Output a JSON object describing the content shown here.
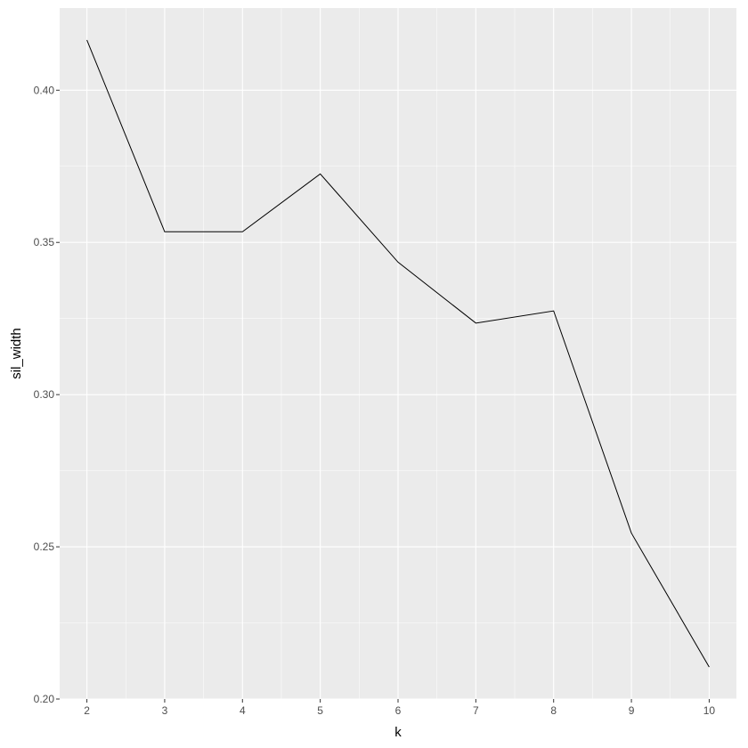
{
  "chart_data": {
    "type": "line",
    "title": "",
    "xlabel": "k",
    "ylabel": "sil_width",
    "x": [
      2,
      3,
      4,
      5,
      6,
      7,
      8,
      9,
      10
    ],
    "y": [
      0.4165,
      0.3535,
      0.3535,
      0.3725,
      0.3435,
      0.3235,
      0.3275,
      0.2545,
      0.2105
    ],
    "xlim": [
      1.65,
      10.35
    ],
    "ylim": [
      0.2,
      0.427
    ],
    "x_ticks": [
      2,
      3,
      4,
      5,
      6,
      7,
      8,
      9,
      10
    ],
    "x_tick_labels": [
      "2",
      "3",
      "4",
      "5",
      "6",
      "7",
      "8",
      "9",
      "10"
    ],
    "y_ticks": [
      0.2,
      0.25,
      0.3,
      0.35,
      0.4
    ],
    "y_tick_labels": [
      "0.20",
      "0.25",
      "0.30",
      "0.35",
      "0.40"
    ],
    "grid": true,
    "legend": "none",
    "colors": {
      "panel_background": "#ebebeb",
      "grid_major": "#ffffff",
      "line": "#000000",
      "tick_label": "#4d4d4d",
      "tick_mark": "#333333"
    }
  }
}
